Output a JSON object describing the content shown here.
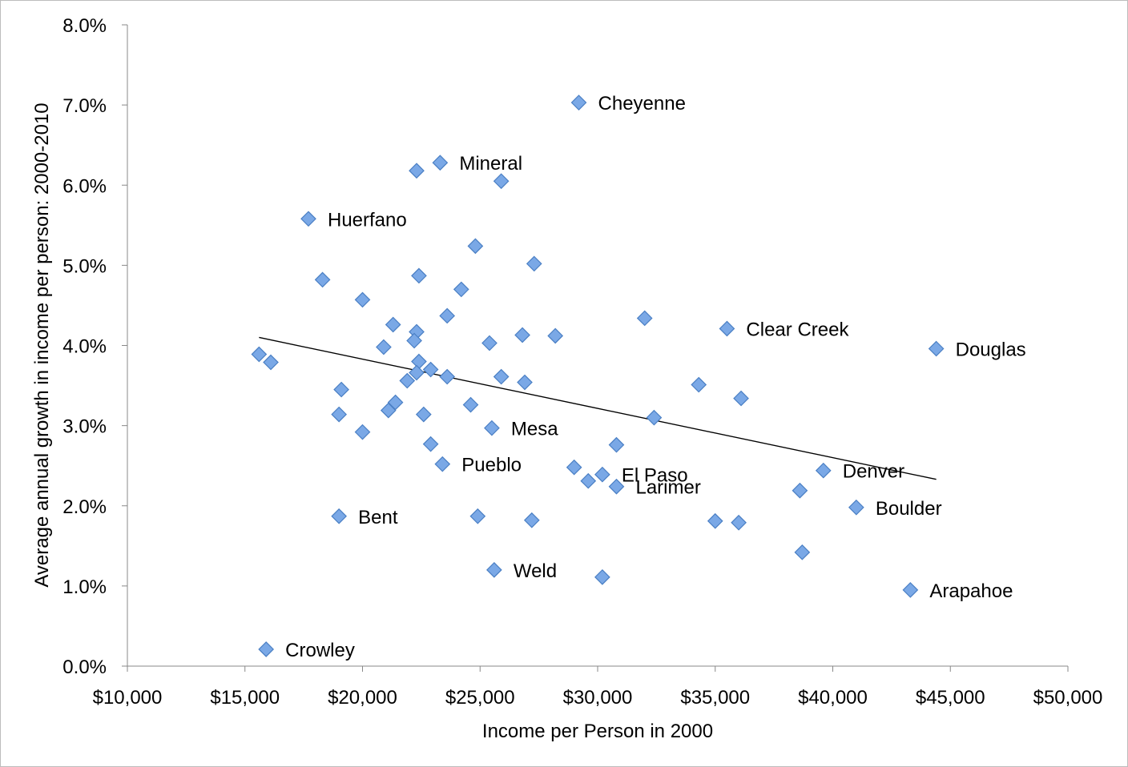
{
  "chart_data": {
    "type": "scatter",
    "title": "",
    "xlabel": "Income per Person in 2000",
    "ylabel": "Average annual growth in income per person: 2000-2010",
    "xlim": [
      10000,
      50000
    ],
    "ylim": [
      0,
      8
    ],
    "x_ticks": [
      10000,
      15000,
      20000,
      25000,
      30000,
      35000,
      40000,
      45000,
      50000
    ],
    "y_ticks": [
      0,
      1,
      2,
      3,
      4,
      5,
      6,
      7,
      8
    ],
    "x_tick_labels": [
      "$10,000",
      "$15,000",
      "$20,000",
      "$25,000",
      "$30,000",
      "$35,000",
      "$40,000",
      "$45,000",
      "$50,000"
    ],
    "y_tick_labels": [
      "0.0%",
      "1.0%",
      "2.0%",
      "3.0%",
      "4.0%",
      "5.0%",
      "6.0%",
      "7.0%",
      "8.0%"
    ],
    "grid": false,
    "legend": "none",
    "marker_color": "#7aa8e6",
    "marker_edge_color": "#4a7fc4",
    "trendline": {
      "x": [
        15600,
        44400
      ],
      "y": [
        4.1,
        2.33
      ],
      "color": "#000000"
    },
    "points": [
      {
        "x": 29200,
        "y": 7.03,
        "label": "Cheyenne"
      },
      {
        "x": 23300,
        "y": 6.28,
        "label": "Mineral"
      },
      {
        "x": 22300,
        "y": 6.18,
        "label": ""
      },
      {
        "x": 25900,
        "y": 6.05,
        "label": ""
      },
      {
        "x": 17700,
        "y": 5.58,
        "label": "Huerfano"
      },
      {
        "x": 24800,
        "y": 5.24,
        "label": ""
      },
      {
        "x": 27300,
        "y": 5.02,
        "label": ""
      },
      {
        "x": 22400,
        "y": 4.87,
        "label": ""
      },
      {
        "x": 18300,
        "y": 4.82,
        "label": ""
      },
      {
        "x": 24200,
        "y": 4.7,
        "label": ""
      },
      {
        "x": 20000,
        "y": 4.57,
        "label": ""
      },
      {
        "x": 23600,
        "y": 4.37,
        "label": ""
      },
      {
        "x": 32000,
        "y": 4.34,
        "label": ""
      },
      {
        "x": 21300,
        "y": 4.26,
        "label": ""
      },
      {
        "x": 35500,
        "y": 4.21,
        "label": "Clear Creek"
      },
      {
        "x": 22300,
        "y": 4.17,
        "label": ""
      },
      {
        "x": 26800,
        "y": 4.13,
        "label": ""
      },
      {
        "x": 28200,
        "y": 4.12,
        "label": ""
      },
      {
        "x": 22200,
        "y": 4.06,
        "label": ""
      },
      {
        "x": 25400,
        "y": 4.03,
        "label": ""
      },
      {
        "x": 20900,
        "y": 3.98,
        "label": ""
      },
      {
        "x": 44400,
        "y": 3.96,
        "label": "Douglas"
      },
      {
        "x": 15600,
        "y": 3.89,
        "label": ""
      },
      {
        "x": 22400,
        "y": 3.8,
        "label": ""
      },
      {
        "x": 16100,
        "y": 3.79,
        "label": ""
      },
      {
        "x": 22900,
        "y": 3.7,
        "label": ""
      },
      {
        "x": 22300,
        "y": 3.66,
        "label": ""
      },
      {
        "x": 23600,
        "y": 3.61,
        "label": ""
      },
      {
        "x": 25900,
        "y": 3.61,
        "label": ""
      },
      {
        "x": 21900,
        "y": 3.56,
        "label": ""
      },
      {
        "x": 26900,
        "y": 3.54,
        "label": ""
      },
      {
        "x": 34300,
        "y": 3.51,
        "label": ""
      },
      {
        "x": 19100,
        "y": 3.45,
        "label": ""
      },
      {
        "x": 36100,
        "y": 3.34,
        "label": ""
      },
      {
        "x": 21400,
        "y": 3.29,
        "label": ""
      },
      {
        "x": 24600,
        "y": 3.26,
        "label": ""
      },
      {
        "x": 21100,
        "y": 3.19,
        "label": ""
      },
      {
        "x": 19000,
        "y": 3.14,
        "label": ""
      },
      {
        "x": 22600,
        "y": 3.14,
        "label": ""
      },
      {
        "x": 32400,
        "y": 3.1,
        "label": ""
      },
      {
        "x": 25500,
        "y": 2.97,
        "label": "Mesa"
      },
      {
        "x": 20000,
        "y": 2.92,
        "label": ""
      },
      {
        "x": 22900,
        "y": 2.77,
        "label": ""
      },
      {
        "x": 30800,
        "y": 2.76,
        "label": ""
      },
      {
        "x": 23400,
        "y": 2.52,
        "label": "Pueblo"
      },
      {
        "x": 29000,
        "y": 2.48,
        "label": ""
      },
      {
        "x": 39600,
        "y": 2.44,
        "label": "Denver"
      },
      {
        "x": 30200,
        "y": 2.39,
        "label": "El Paso"
      },
      {
        "x": 29600,
        "y": 2.31,
        "label": ""
      },
      {
        "x": 30800,
        "y": 2.24,
        "label": "Larimer"
      },
      {
        "x": 38600,
        "y": 2.19,
        "label": ""
      },
      {
        "x": 41000,
        "y": 1.98,
        "label": "Boulder"
      },
      {
        "x": 19000,
        "y": 1.87,
        "label": "Bent"
      },
      {
        "x": 24900,
        "y": 1.87,
        "label": ""
      },
      {
        "x": 27200,
        "y": 1.82,
        "label": ""
      },
      {
        "x": 35000,
        "y": 1.81,
        "label": ""
      },
      {
        "x": 36000,
        "y": 1.79,
        "label": ""
      },
      {
        "x": 38700,
        "y": 1.42,
        "label": ""
      },
      {
        "x": 25600,
        "y": 1.2,
        "label": "Weld"
      },
      {
        "x": 30200,
        "y": 1.11,
        "label": ""
      },
      {
        "x": 43300,
        "y": 0.95,
        "label": "Arapahoe"
      },
      {
        "x": 15900,
        "y": 0.21,
        "label": "Crowley"
      }
    ]
  }
}
